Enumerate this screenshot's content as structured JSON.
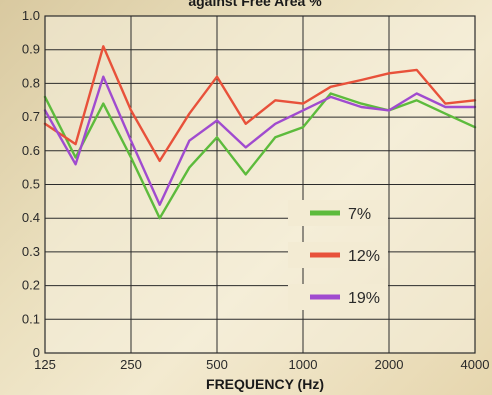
{
  "chart_data": {
    "type": "line",
    "title": "against Free Area %",
    "xlabel": "FREQUENCY (Hz)",
    "ylabel": "",
    "x": [
      125,
      160,
      200,
      250,
      315,
      400,
      500,
      630,
      800,
      1000,
      1250,
      1600,
      2000,
      2500,
      3150,
      4000
    ],
    "xticks": [
      125,
      250,
      500,
      1000,
      2000,
      4000
    ],
    "xtick_labels": [
      "125",
      "250",
      "500",
      "1000",
      "2000",
      "4000"
    ],
    "xscale": "log",
    "xlim": [
      125,
      4000
    ],
    "ylim": [
      0,
      1.0
    ],
    "yticks": [
      0,
      0.1,
      0.2,
      0.3,
      0.4,
      0.5,
      0.6,
      0.7,
      0.8,
      0.9,
      1.0
    ],
    "ytick_labels": [
      "0",
      "0.1",
      "0.2",
      "0.3",
      "0.4",
      "0.5",
      "0.6",
      "0.7",
      "0.8",
      "0.9",
      "1.0"
    ],
    "grid": true,
    "legend_position": "bottom-right",
    "series": [
      {
        "name": "7%",
        "color": "#5dbb3c",
        "values": [
          0.76,
          0.58,
          0.74,
          0.58,
          0.4,
          0.55,
          0.64,
          0.53,
          0.64,
          0.67,
          0.77,
          0.74,
          0.72,
          0.75,
          0.71,
          0.67
        ]
      },
      {
        "name": "12%",
        "color": "#e8513a",
        "values": [
          0.68,
          0.62,
          0.91,
          0.72,
          0.57,
          0.71,
          0.82,
          0.68,
          0.75,
          0.74,
          0.79,
          0.81,
          0.83,
          0.84,
          0.74,
          0.75
        ]
      },
      {
        "name": "19%",
        "color": "#a04bcf",
        "values": [
          0.72,
          0.56,
          0.82,
          0.63,
          0.44,
          0.63,
          0.69,
          0.61,
          0.68,
          0.72,
          0.76,
          0.73,
          0.72,
          0.77,
          0.73,
          0.73
        ]
      }
    ]
  }
}
